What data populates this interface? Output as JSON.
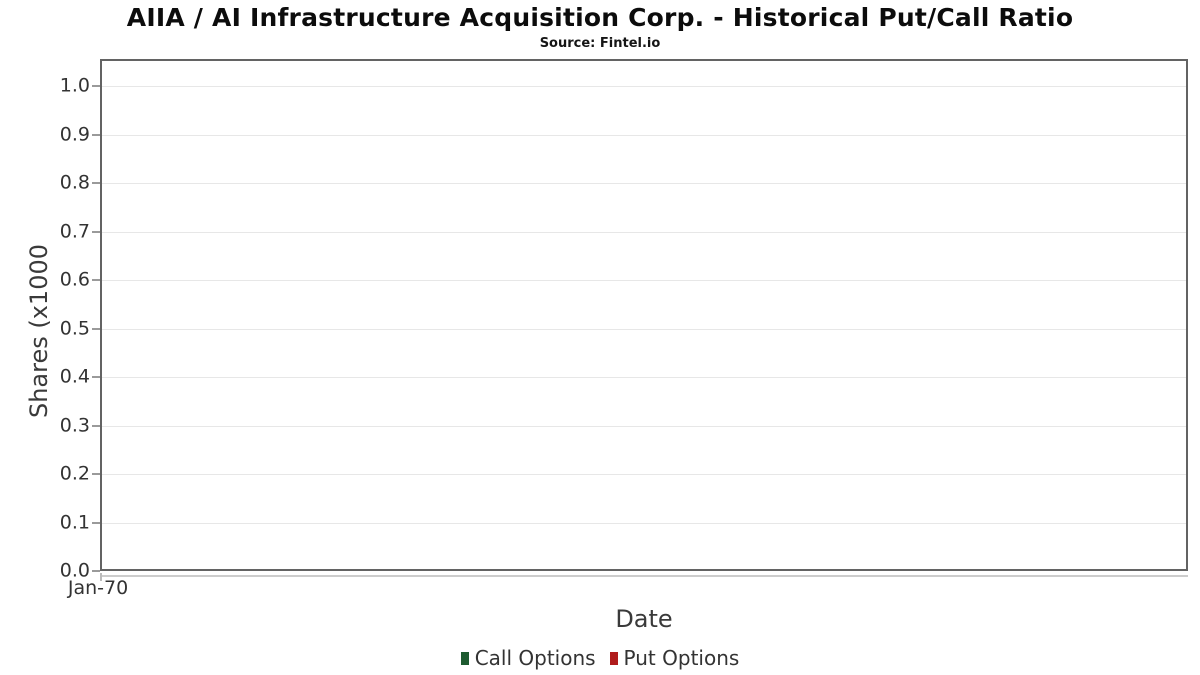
{
  "header": {
    "title": "AIIA / AI Infrastructure Acquisition Corp. - Historical Put/Call Ratio",
    "source": "Source: Fintel.io"
  },
  "chart_data": {
    "type": "line",
    "title": "AIIA / AI Infrastructure Acquisition Corp. - Historical Put/Call Ratio",
    "subtitle": "Source: Fintel.io",
    "xlabel": "Date",
    "ylabel": "Shares (x1000",
    "ylim": [
      0.0,
      1.0
    ],
    "y_ticks": [
      "1.0",
      "0.9",
      "0.8",
      "0.7",
      "0.6",
      "0.5",
      "0.4",
      "0.3",
      "0.2",
      "0.1",
      "0.0"
    ],
    "x_ticks": [
      "Jan-70"
    ],
    "grid": "horizontal",
    "legend_position": "bottom",
    "series": [
      {
        "name": "Call Options",
        "color": "#1d5b30",
        "x": [],
        "values": []
      },
      {
        "name": "Put Options",
        "color": "#b01c1c",
        "x": [],
        "values": []
      }
    ]
  }
}
